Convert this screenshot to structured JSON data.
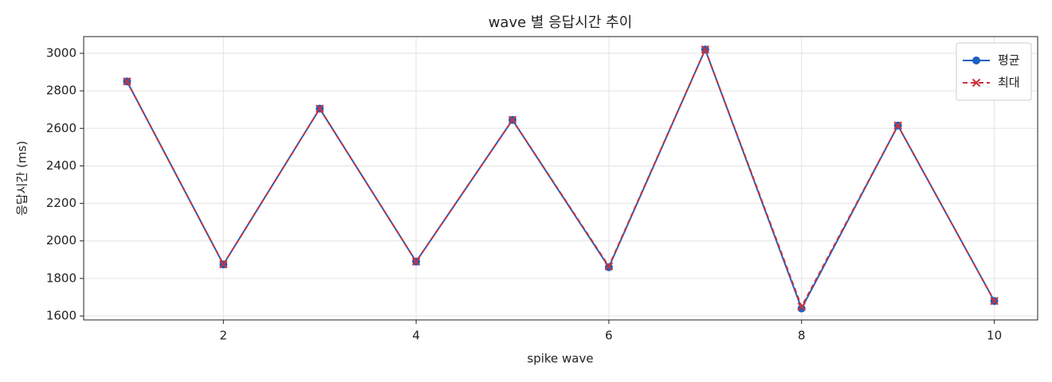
{
  "chart_data": {
    "type": "line",
    "title": "wave 별 응답시간 추이",
    "xlabel": "spike wave",
    "ylabel": "응답시간 (ms)",
    "x": [
      1,
      2,
      3,
      4,
      5,
      6,
      7,
      8,
      9,
      10
    ],
    "series": [
      {
        "name": "평균",
        "color": "#1f5fbf",
        "marker": "circle",
        "dash": false,
        "values": [
          2850,
          1875,
          2705,
          1890,
          2645,
          1860,
          3020,
          1640,
          2615,
          1680
        ]
      },
      {
        "name": "최대",
        "color": "#c8323c",
        "marker": "x",
        "dash": true,
        "values": [
          2850,
          1875,
          2705,
          1890,
          2645,
          1865,
          3020,
          1650,
          2615,
          1680
        ]
      }
    ],
    "xlim": [
      0.55,
      10.45
    ],
    "xticks": [
      2,
      4,
      6,
      8,
      10
    ],
    "ylim": [
      1579,
      3089
    ],
    "yticks": [
      1600,
      1800,
      2000,
      2200,
      2400,
      2600,
      2800,
      3000
    ],
    "grid": true,
    "legend": "upper right"
  }
}
